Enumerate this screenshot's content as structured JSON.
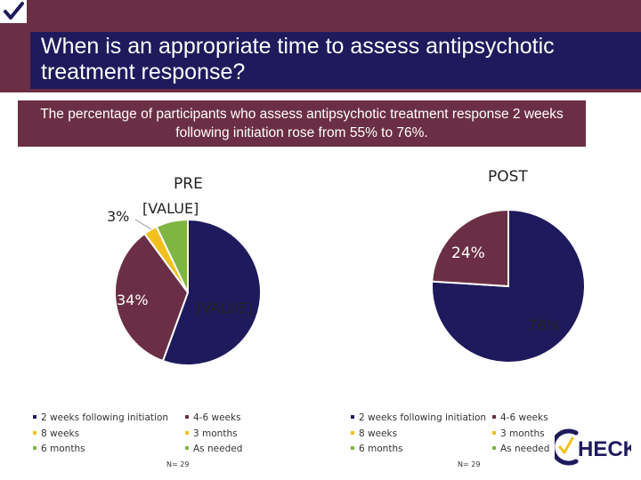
{
  "slide": {
    "title": "When is an appropriate time to assess antipsychotic treatment response?",
    "subtitle": "The percentage of participants who assess antipsychotic treatment response 2 weeks following initiation rose from 55% to 76%."
  },
  "colors": {
    "title_bar": "#6b2f45",
    "title_inner": "#1f1a5c",
    "two_weeks": "#1f1a5c",
    "four_six_weeks": "#6b2f45",
    "eight_weeks": "#f2c01e",
    "three_months": "#f2c01e",
    "six_months": "#7fb543",
    "as_needed": "#7fb543"
  },
  "icons": {
    "corner": "checkmark-icon",
    "logo": "check-logo-icon"
  },
  "logo_text": "HECK",
  "chart_data": [
    {
      "type": "pie",
      "title": "PRE",
      "categories": [
        "2 weeks following initiation",
        "4-6 weeks",
        "8 weeks",
        "3 months",
        "6 months",
        "As needed"
      ],
      "values": [
        55,
        34,
        0,
        3,
        0,
        7
      ],
      "data_labels": [
        "[VALUE]",
        "34%",
        "",
        "3%",
        "",
        "[VALUE]"
      ],
      "legend": {
        "position": "bottom",
        "items": [
          "2 weeks following initiation",
          "4-6 weeks",
          "8 weeks",
          "3 months",
          "6 months",
          "As needed"
        ]
      },
      "note": "N= 29"
    },
    {
      "type": "pie",
      "title": "POST",
      "categories": [
        "2 weeks following initiation",
        "4-6 weeks",
        "8 weeks",
        "3 months",
        "6 months",
        "As needed"
      ],
      "values": [
        76,
        24,
        0,
        0,
        0,
        0
      ],
      "data_labels": [
        "76%",
        "24%",
        "",
        "",
        "",
        ""
      ],
      "legend": {
        "position": "bottom",
        "items": [
          "2 weeks following initiation",
          "4-6 weeks",
          "8 weeks",
          "3 months",
          "6 months",
          "As needed"
        ]
      },
      "note": "N= 29"
    }
  ]
}
